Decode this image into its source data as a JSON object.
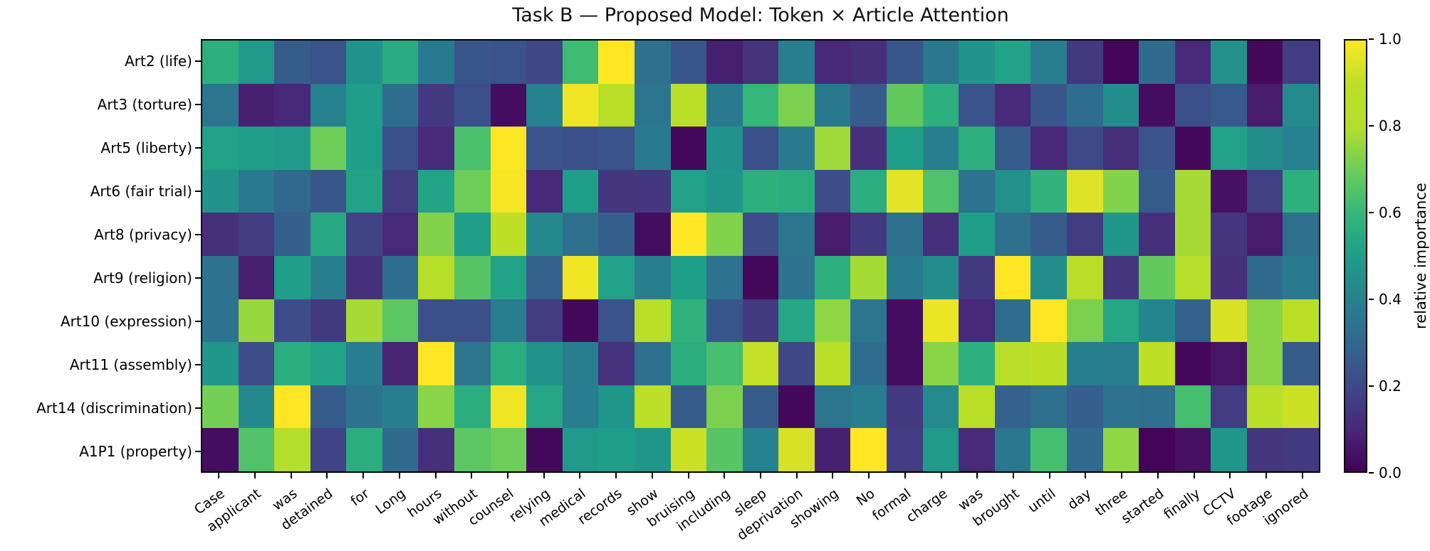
{
  "title": "Task B — Proposed Model: Token × Article Attention",
  "chart_data": {
    "type": "heatmap",
    "colormap": "viridis",
    "grid": "off",
    "x_categories": [
      "Case",
      "applicant",
      "was",
      "detained",
      "for",
      "Long",
      "hours",
      "without",
      "counsel",
      "relying",
      "medical",
      "records",
      "show",
      "bruising",
      "including",
      "sleep",
      "deprivation",
      "showing",
      "No",
      "formal",
      "charge",
      "was",
      "brought",
      "until",
      "day",
      "three",
      "started",
      "finally",
      "CCTV",
      "footage",
      "ignored"
    ],
    "y_categories": [
      "Art2 (life)",
      "Art3 (torture)",
      "Art5 (liberty)",
      "Art6 (fair trial)",
      "Art8 (privacy)",
      "Art9 (religion)",
      "Art10 (expression)",
      "Art11 (assembly)",
      "Art14 (discrimination)",
      "A1P1 (property)"
    ],
    "values": [
      [
        0.57,
        0.48,
        0.26,
        0.23,
        0.46,
        0.55,
        0.37,
        0.24,
        0.23,
        0.19,
        0.62,
        1.0,
        0.33,
        0.24,
        0.08,
        0.13,
        0.38,
        0.1,
        0.12,
        0.24,
        0.36,
        0.46,
        0.52,
        0.38,
        0.15,
        0.01,
        0.31,
        0.11,
        0.45,
        0.02,
        0.16
      ],
      [
        0.35,
        0.08,
        0.1,
        0.4,
        0.5,
        0.32,
        0.15,
        0.22,
        0.03,
        0.4,
        0.98,
        0.87,
        0.35,
        0.85,
        0.37,
        0.6,
        0.72,
        0.36,
        0.26,
        0.68,
        0.57,
        0.23,
        0.11,
        0.24,
        0.32,
        0.44,
        0.03,
        0.22,
        0.25,
        0.07,
        0.43
      ],
      [
        0.52,
        0.5,
        0.49,
        0.7,
        0.5,
        0.22,
        0.11,
        0.64,
        1.0,
        0.23,
        0.22,
        0.23,
        0.37,
        0.02,
        0.46,
        0.22,
        0.37,
        0.77,
        0.12,
        0.5,
        0.38,
        0.57,
        0.26,
        0.1,
        0.2,
        0.12,
        0.23,
        0.02,
        0.51,
        0.44,
        0.4
      ],
      [
        0.46,
        0.37,
        0.3,
        0.24,
        0.52,
        0.16,
        0.52,
        0.7,
        0.99,
        0.1,
        0.5,
        0.14,
        0.14,
        0.51,
        0.47,
        0.57,
        0.56,
        0.21,
        0.56,
        0.96,
        0.65,
        0.34,
        0.45,
        0.58,
        0.95,
        0.73,
        0.26,
        0.78,
        0.04,
        0.17,
        0.57
      ],
      [
        0.12,
        0.16,
        0.27,
        0.54,
        0.18,
        0.11,
        0.73,
        0.5,
        0.9,
        0.42,
        0.33,
        0.27,
        0.03,
        1.0,
        0.73,
        0.21,
        0.35,
        0.07,
        0.15,
        0.33,
        0.12,
        0.5,
        0.33,
        0.26,
        0.16,
        0.47,
        0.12,
        0.78,
        0.14,
        0.07,
        0.33
      ],
      [
        0.34,
        0.08,
        0.5,
        0.39,
        0.12,
        0.32,
        0.83,
        0.66,
        0.52,
        0.28,
        0.98,
        0.51,
        0.39,
        0.5,
        0.34,
        0.02,
        0.34,
        0.57,
        0.78,
        0.37,
        0.44,
        0.15,
        1.0,
        0.44,
        0.84,
        0.14,
        0.68,
        0.82,
        0.12,
        0.31,
        0.37
      ],
      [
        0.34,
        0.76,
        0.21,
        0.15,
        0.78,
        0.67,
        0.22,
        0.22,
        0.38,
        0.16,
        0.02,
        0.23,
        0.86,
        0.58,
        0.24,
        0.15,
        0.53,
        0.75,
        0.35,
        0.03,
        0.97,
        0.1,
        0.32,
        1.0,
        0.72,
        0.53,
        0.41,
        0.28,
        0.94,
        0.74,
        0.88
      ],
      [
        0.47,
        0.21,
        0.56,
        0.52,
        0.38,
        0.09,
        1.0,
        0.35,
        0.56,
        0.46,
        0.38,
        0.13,
        0.33,
        0.56,
        0.63,
        0.91,
        0.19,
        0.87,
        0.32,
        0.03,
        0.74,
        0.57,
        0.84,
        0.9,
        0.39,
        0.38,
        0.9,
        0.02,
        0.05,
        0.74,
        0.26
      ],
      [
        0.71,
        0.42,
        1.0,
        0.26,
        0.34,
        0.39,
        0.74,
        0.56,
        0.98,
        0.53,
        0.38,
        0.47,
        0.88,
        0.26,
        0.72,
        0.26,
        0.02,
        0.35,
        0.38,
        0.15,
        0.43,
        0.86,
        0.28,
        0.33,
        0.27,
        0.34,
        0.33,
        0.63,
        0.16,
        0.85,
        0.92
      ],
      [
        0.03,
        0.65,
        0.8,
        0.18,
        0.56,
        0.31,
        0.12,
        0.67,
        0.7,
        0.02,
        0.49,
        0.5,
        0.47,
        0.92,
        0.66,
        0.4,
        0.94,
        0.08,
        1.0,
        0.16,
        0.49,
        0.11,
        0.36,
        0.63,
        0.31,
        0.75,
        0.01,
        0.04,
        0.47,
        0.14,
        0.15
      ]
    ],
    "value_range": [
      0.0,
      1.0
    ],
    "colorbar": {
      "label": "relative importance",
      "tick_labels": [
        "0.0",
        "0.2",
        "0.4",
        "0.6",
        "0.8",
        "1.0"
      ],
      "tick_values": [
        0.0,
        0.2,
        0.4,
        0.6,
        0.8,
        1.0
      ],
      "position": "right"
    },
    "viridis_stops": [
      [
        0.0,
        68,
        1,
        84
      ],
      [
        0.1,
        72,
        40,
        120
      ],
      [
        0.2,
        62,
        74,
        137
      ],
      [
        0.3,
        49,
        104,
        142
      ],
      [
        0.4,
        38,
        130,
        142
      ],
      [
        0.5,
        31,
        158,
        137
      ],
      [
        0.6,
        53,
        183,
        121
      ],
      [
        0.7,
        109,
        205,
        89
      ],
      [
        0.8,
        180,
        222,
        44
      ],
      [
        0.9,
        189,
        223,
        38
      ],
      [
        1.0,
        253,
        231,
        37
      ]
    ]
  }
}
